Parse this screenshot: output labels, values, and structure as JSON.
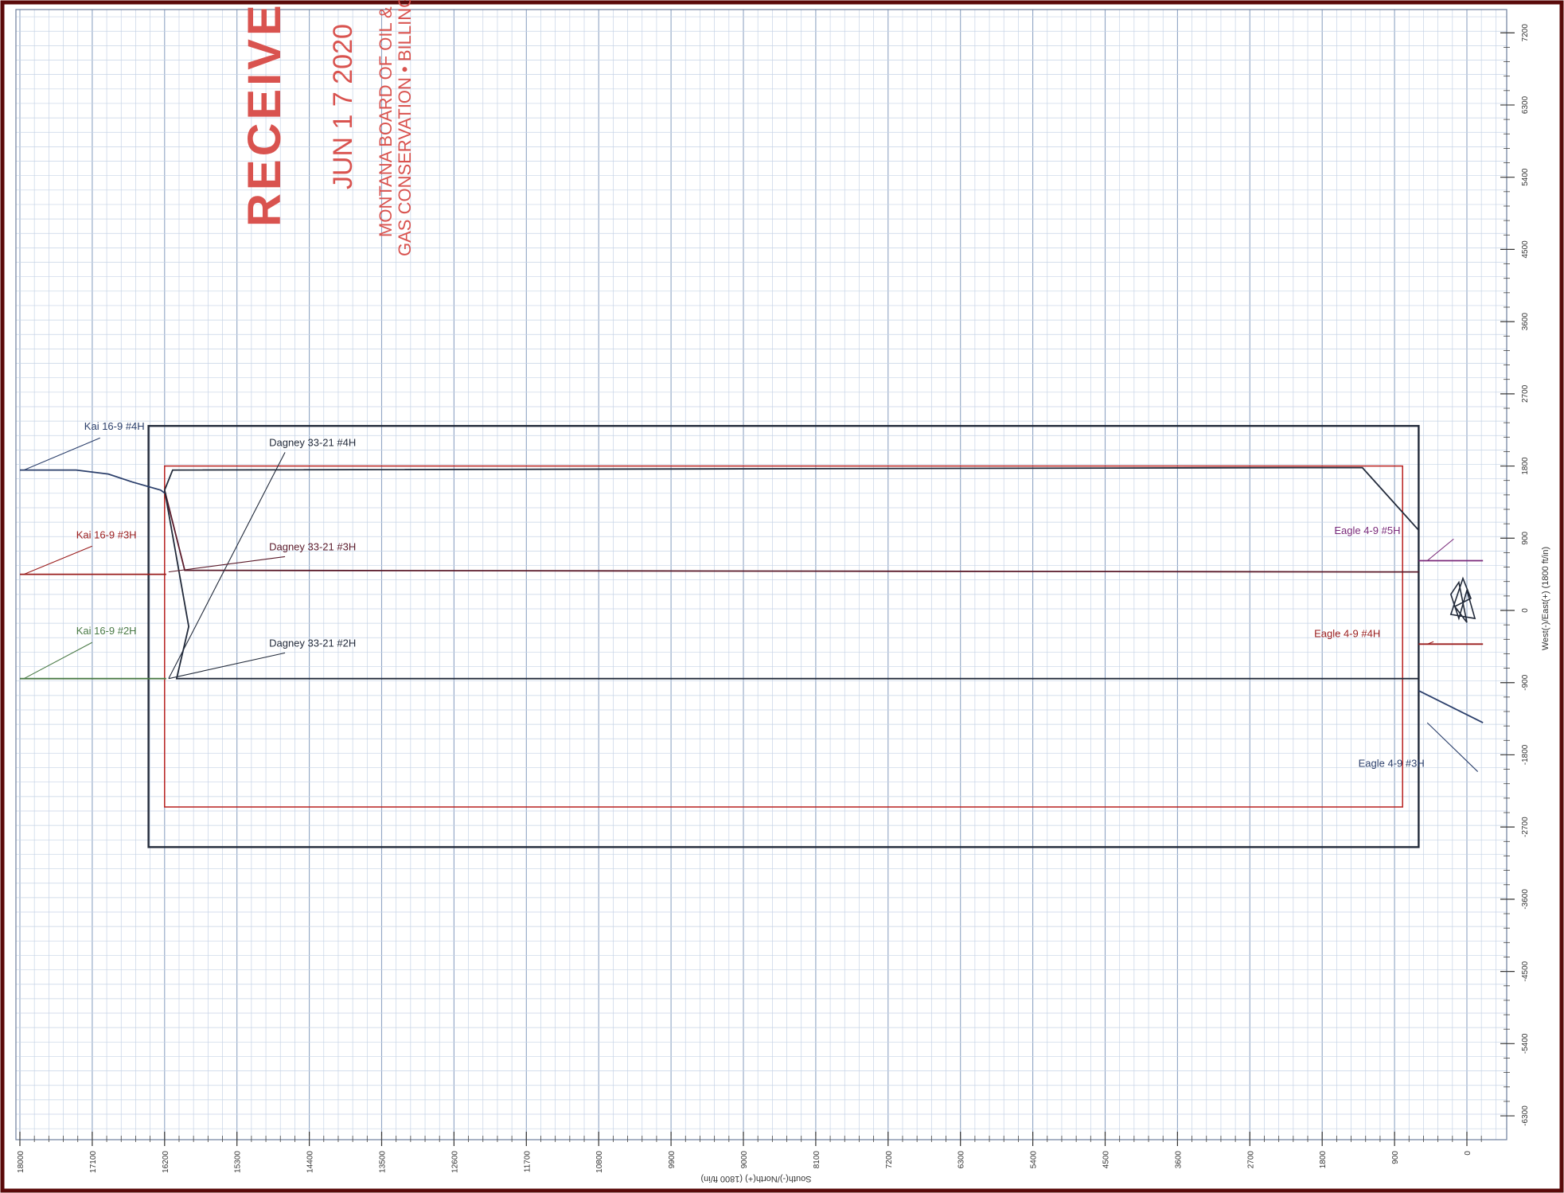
{
  "stamp": {
    "received": "RECEIVED",
    "date": "JUN 1 7 2020",
    "line1": "MONTANA BOARD OF OIL &",
    "line2": "GAS CONSERVATION • BILLINGS",
    "color": "#d9534f"
  },
  "chart_data": {
    "type": "line",
    "title": "",
    "xlabel": "South(-)/North(+) (1800 ft/in)",
    "ylabel": "West(-)/East(+) (1800 ft/in)",
    "x_ticks": [
      "18000",
      "17100",
      "16200",
      "15300",
      "14400",
      "13500",
      "12600",
      "11700",
      "10800",
      "9900",
      "9000",
      "8100",
      "7200",
      "6300",
      "5400",
      "4500",
      "3600",
      "2700",
      "1800",
      "900",
      "0"
    ],
    "y_ticks": [
      "7200",
      "6300",
      "5400",
      "4500",
      "3600",
      "2700",
      "1800",
      "900",
      "0",
      "-900",
      "-1800",
      "-2700",
      "-3600",
      "-4500",
      "-5400",
      "-6300"
    ],
    "xlim": [
      18000,
      -300
    ],
    "ylim": [
      -6300,
      7200
    ],
    "grid": true,
    "colors": {
      "grid_major": "#8fa4c4",
      "grid_minor": "#c6d3e6",
      "dark": "#222a3a",
      "red": "#b8201e",
      "green": "#4a7a46"
    },
    "boxes": [
      {
        "name": "section-outline",
        "x": [
          16400,
          600
        ],
        "y": [
          2300,
          -2950
        ],
        "color": "#222a3a"
      },
      {
        "name": "setback-outline",
        "x": [
          16200,
          800
        ],
        "y": [
          1800,
          -2450
        ],
        "color": "#b8201e"
      }
    ],
    "series": [
      {
        "name": "Kai 16-9 #4H",
        "color": "#2b3f6b",
        "label_x": 17200,
        "label_y": 2250,
        "points": [
          [
            18000,
            1750
          ],
          [
            17300,
            1750
          ],
          [
            16900,
            1700
          ],
          [
            16600,
            1600
          ],
          [
            16250,
            1500
          ],
          [
            16180,
            1450
          ]
        ]
      },
      {
        "name": "Kai 16-9 #3H",
        "color": "#9a1c1c",
        "label_x": 17300,
        "label_y": 900,
        "points": [
          [
            18000,
            450
          ],
          [
            16180,
            450
          ]
        ]
      },
      {
        "name": "Kai 16-9 #2H",
        "color": "#4a7a46",
        "label_x": 17300,
        "label_y": -300,
        "points": [
          [
            18000,
            -850
          ],
          [
            16180,
            -850
          ]
        ]
      },
      {
        "name": "Dagney 33-21 #4H",
        "color": "#222a3a",
        "label_x": 14900,
        "label_y": 2050,
        "points": [
          [
            16200,
            1500
          ],
          [
            16100,
            1750
          ],
          [
            2100,
            1780
          ],
          [
            1300,
            1780
          ],
          [
            600,
            1000
          ]
        ]
      },
      {
        "name": "Dagney 33-21 #3H",
        "color": "#5a1a2a",
        "label_x": 14900,
        "label_y": 750,
        "points": [
          [
            16200,
            1500
          ],
          [
            15950,
            500
          ],
          [
            1100,
            480
          ],
          [
            600,
            480
          ]
        ]
      },
      {
        "name": "Dagney 33-21 #2H",
        "color": "#222a3a",
        "label_x": 14900,
        "label_y": -450,
        "points": [
          [
            16200,
            1500
          ],
          [
            15900,
            -200
          ],
          [
            16050,
            -850
          ],
          [
            1100,
            -850
          ],
          [
            600,
            -850
          ]
        ]
      },
      {
        "name": "Eagle 4-9 #5H",
        "color": "#7a2a7a",
        "label_x": 1650,
        "label_y": 950,
        "points": [
          [
            600,
            620
          ],
          [
            -200,
            620
          ]
        ]
      },
      {
        "name": "Eagle 4-9 #4H",
        "color": "#9a1c1c",
        "label_x": 1900,
        "label_y": -330,
        "points": [
          [
            600,
            -420
          ],
          [
            -200,
            -420
          ]
        ]
      },
      {
        "name": "Eagle 4-9 #3H",
        "color": "#2b3f6b",
        "label_x": 1350,
        "label_y": -1950,
        "points": [
          [
            600,
            -1000
          ],
          [
            -200,
            -1400
          ]
        ]
      }
    ],
    "annotations": [
      "Kai 16-9 #4H",
      "Dagney 33-21 #4H",
      "Kai 16-9 #3H",
      "Dagney 33-21 #3H",
      "Kai 16-9 #2H",
      "Dagney 33-21 #2H",
      "Eagle 4-9 #5H",
      "Eagle 4-9 #4H",
      "Eagle 4-9 #3H"
    ]
  }
}
